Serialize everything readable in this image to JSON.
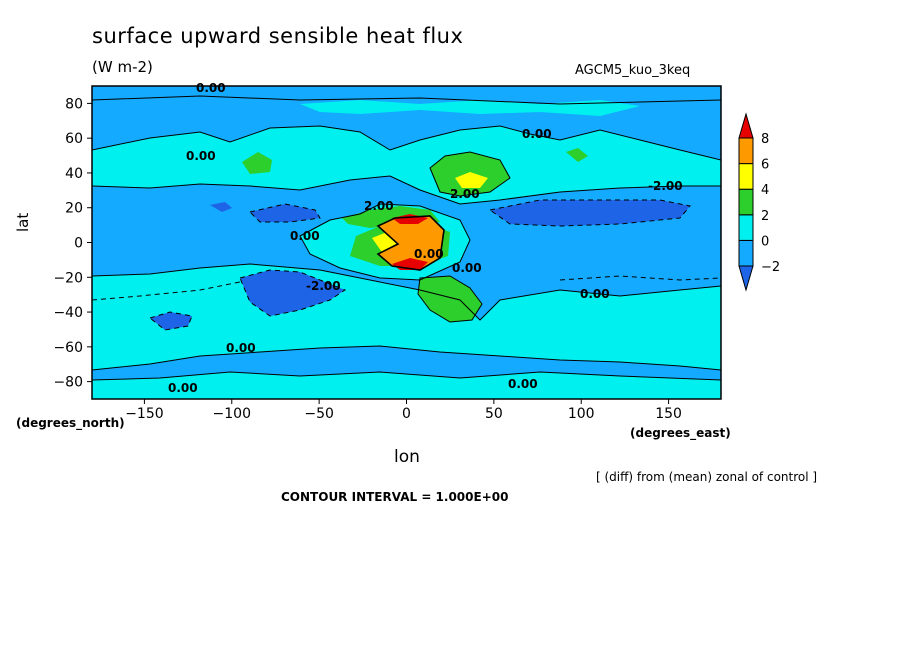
{
  "chart_data": {
    "type": "heatmap",
    "title": "surface upward sensible heat flux",
    "units": "(W m-2)",
    "model": "AGCM5_kuo_3keq",
    "xlabel": "lon",
    "ylabel": "lat",
    "xunits": "(degrees_east)",
    "yunits": "(degrees_north)",
    "xlim": [
      -180,
      180
    ],
    "ylim": [
      -90,
      90
    ],
    "xticks": [
      -150,
      -100,
      -50,
      0,
      50,
      100,
      150
    ],
    "yticks": [
      -80,
      -60,
      -40,
      -20,
      0,
      20,
      40,
      60,
      80
    ],
    "colorbar": {
      "levels": [
        -2,
        0,
        2,
        4,
        6,
        8
      ],
      "colors": [
        "#1e64e6",
        "#14aaff",
        "#00f0f0",
        "#2ccf2c",
        "#ffff00",
        "#ff9900",
        "#e60000"
      ]
    },
    "contour_labels": [
      "0.00",
      "0.00",
      "0.00",
      "0.00",
      "0.00",
      "0.00",
      "0.00",
      "0.00",
      "0.00",
      "0.00",
      "2.00",
      "2.00",
      "-2.00",
      "-2.00"
    ],
    "note": "[ (diff) from (mean) zonal of control ]",
    "contour_interval": "CONTOUR INTERVAL = 1.000E+00"
  }
}
